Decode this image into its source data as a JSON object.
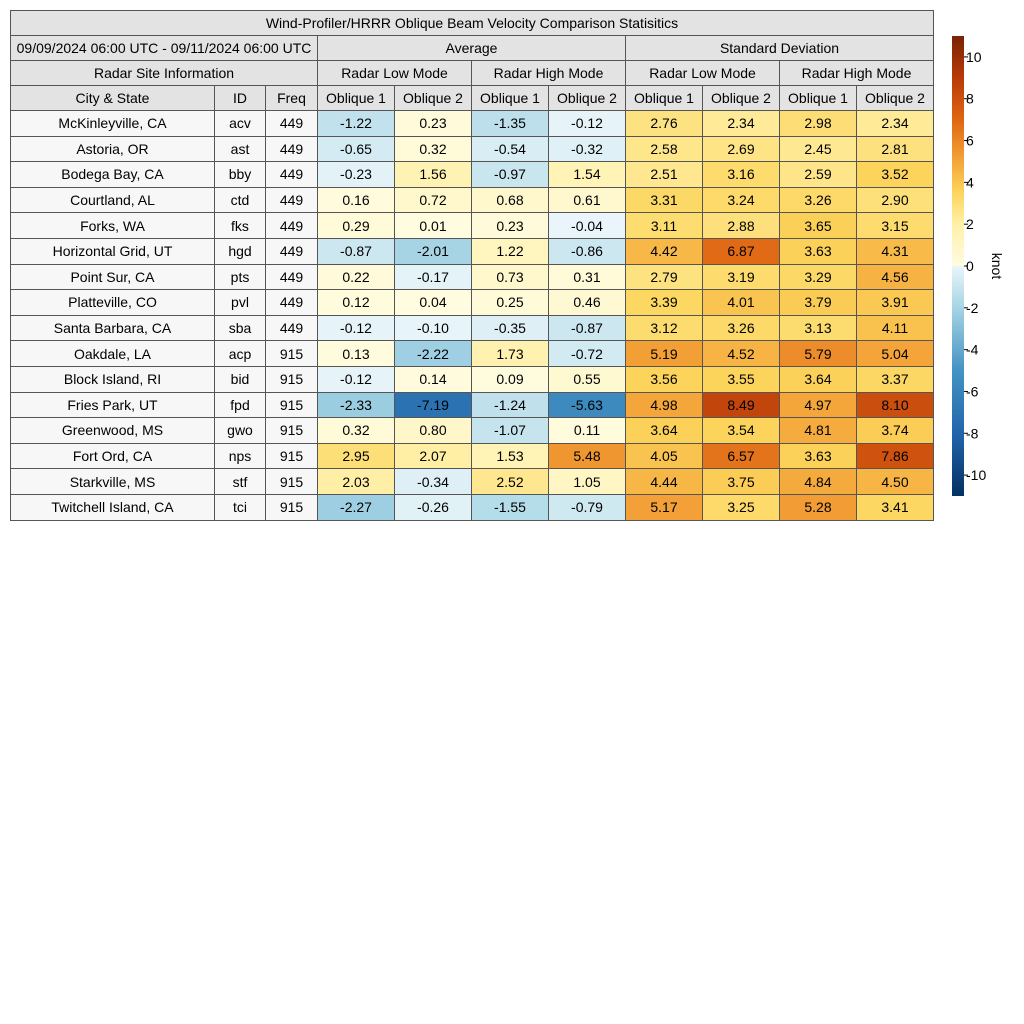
{
  "table": {
    "title": "Wind-Profiler/HRRR Oblique Beam Velocity Comparison Statisitics",
    "date_range": "09/09/2024 06:00 UTC - 09/11/2024 06:00 UTC",
    "groups": [
      "Average",
      "Standard Deviation"
    ],
    "site_info_label": "Radar Site Information",
    "modes": [
      "Radar Low Mode",
      "Radar High Mode",
      "Radar Low Mode",
      "Radar High Mode"
    ],
    "site_columns": [
      "City & State",
      "ID",
      "Freq"
    ],
    "beam_columns": [
      "Oblique 1",
      "Oblique 2",
      "Oblique 1",
      "Oblique 2",
      "Oblique 1",
      "Oblique 2",
      "Oblique 1",
      "Oblique 2"
    ]
  },
  "chart_data": {
    "type": "table",
    "rows": [
      {
        "city": "McKinleyville, CA",
        "id": "acv",
        "freq": "449",
        "values": [
          "-1.22",
          "0.23",
          "-1.35",
          "-0.12",
          "2.76",
          "2.34",
          "2.98",
          "2.34"
        ]
      },
      {
        "city": "Astoria, OR",
        "id": "ast",
        "freq": "449",
        "values": [
          "-0.65",
          "0.32",
          "-0.54",
          "-0.32",
          "2.58",
          "2.69",
          "2.45",
          "2.81"
        ]
      },
      {
        "city": "Bodega Bay, CA",
        "id": "bby",
        "freq": "449",
        "values": [
          "-0.23",
          "1.56",
          "-0.97",
          "1.54",
          "2.51",
          "3.16",
          "2.59",
          "3.52"
        ]
      },
      {
        "city": "Courtland, AL",
        "id": "ctd",
        "freq": "449",
        "values": [
          "0.16",
          "0.72",
          "0.68",
          "0.61",
          "3.31",
          "3.24",
          "3.26",
          "2.90"
        ]
      },
      {
        "city": "Forks, WA",
        "id": "fks",
        "freq": "449",
        "values": [
          "0.29",
          "0.01",
          "0.23",
          "-0.04",
          "3.11",
          "2.88",
          "3.65",
          "3.15"
        ]
      },
      {
        "city": "Horizontal Grid, UT",
        "id": "hgd",
        "freq": "449",
        "values": [
          "-0.87",
          "-2.01",
          "1.22",
          "-0.86",
          "4.42",
          "6.87",
          "3.63",
          "4.31"
        ]
      },
      {
        "city": "Point Sur, CA",
        "id": "pts",
        "freq": "449",
        "values": [
          "0.22",
          "-0.17",
          "0.73",
          "0.31",
          "2.79",
          "3.19",
          "3.29",
          "4.56"
        ]
      },
      {
        "city": "Platteville, CO",
        "id": "pvl",
        "freq": "449",
        "values": [
          "0.12",
          "0.04",
          "0.25",
          "0.46",
          "3.39",
          "4.01",
          "3.79",
          "3.91"
        ]
      },
      {
        "city": "Santa Barbara, CA",
        "id": "sba",
        "freq": "449",
        "values": [
          "-0.12",
          "-0.10",
          "-0.35",
          "-0.87",
          "3.12",
          "3.26",
          "3.13",
          "4.11"
        ]
      },
      {
        "city": "Oakdale, LA",
        "id": "acp",
        "freq": "915",
        "values": [
          "0.13",
          "-2.22",
          "1.73",
          "-0.72",
          "5.19",
          "4.52",
          "5.79",
          "5.04"
        ]
      },
      {
        "city": "Block Island, RI",
        "id": "bid",
        "freq": "915",
        "values": [
          "-0.12",
          "0.14",
          "0.09",
          "0.55",
          "3.56",
          "3.55",
          "3.64",
          "3.37"
        ]
      },
      {
        "city": "Fries Park, UT",
        "id": "fpd",
        "freq": "915",
        "values": [
          "-2.33",
          "-7.19",
          "-1.24",
          "-5.63",
          "4.98",
          "8.49",
          "4.97",
          "8.10"
        ]
      },
      {
        "city": "Greenwood, MS",
        "id": "gwo",
        "freq": "915",
        "values": [
          "0.32",
          "0.80",
          "-1.07",
          "0.11",
          "3.64",
          "3.54",
          "4.81",
          "3.74"
        ]
      },
      {
        "city": "Fort Ord, CA",
        "id": "nps",
        "freq": "915",
        "values": [
          "2.95",
          "2.07",
          "1.53",
          "5.48",
          "4.05",
          "6.57",
          "3.63",
          "7.86"
        ]
      },
      {
        "city": "Starkville, MS",
        "id": "stf",
        "freq": "915",
        "values": [
          "2.03",
          "-0.34",
          "2.52",
          "1.05",
          "4.44",
          "3.75",
          "4.84",
          "4.50"
        ]
      },
      {
        "city": "Twitchell Island, CA",
        "id": "tci",
        "freq": "915",
        "values": [
          "-2.27",
          "-0.26",
          "-1.55",
          "-0.79",
          "5.17",
          "3.25",
          "5.28",
          "3.41"
        ]
      }
    ],
    "colorbar": {
      "label": "knot",
      "range": [
        -11,
        11
      ],
      "ticks": [
        "10",
        "8",
        "6",
        "4",
        "2",
        "0",
        "-2",
        "-4",
        "-6",
        "-8",
        "-10"
      ],
      "stops": [
        {
          "v": -11,
          "c": "#053061"
        },
        {
          "v": -8,
          "c": "#2166ac"
        },
        {
          "v": -5,
          "c": "#4393c3"
        },
        {
          "v": -2,
          "c": "#a6d4e4"
        },
        {
          "v": 0,
          "c": "#eaf6fa"
        },
        {
          "v": 0.01,
          "c": "#fffce0"
        },
        {
          "v": 2,
          "c": "#fff0a8"
        },
        {
          "v": 3.5,
          "c": "#fcd55c"
        },
        {
          "v": 5,
          "c": "#f4a53a"
        },
        {
          "v": 7,
          "c": "#e06614"
        },
        {
          "v": 9,
          "c": "#b83a08"
        },
        {
          "v": 11,
          "c": "#7a2304"
        }
      ]
    }
  }
}
